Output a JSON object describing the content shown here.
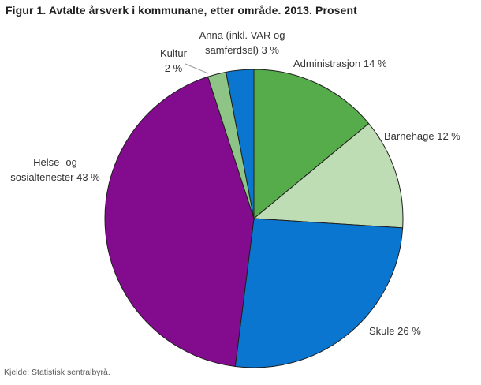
{
  "title": "Figur 1. Avtalte årsverk i kommunane, etter område. 2013. Prosent",
  "source": "Kjelde: Statistisk sentralbyrå.",
  "labels": {
    "administrasjon": "Administrasjon 14 %",
    "barnehage": "Barnehage 12 %",
    "skule": "Skule 26 %",
    "helse": {
      "line1": "Helse- og",
      "line2": "sosialtenester 43 %"
    },
    "kultur": {
      "line1": "Kultur",
      "line2": "2 %"
    },
    "anna": {
      "line1": "Anna (inkl. VAR og",
      "line2": "samferdsel) 3 %"
    }
  },
  "colors": {
    "slice_stroke": "#1f1f1f",
    "leader_line": "#999999"
  },
  "chart_data": {
    "type": "pie",
    "title": "Figur 1. Avtalte årsverk i kommunane, etter område. 2013. Prosent",
    "unit": "percent",
    "start_angle_deg": 0,
    "direction": "clockwise",
    "slices": [
      {
        "label": "Administrasjon",
        "value": 14,
        "color": "#56ab4a"
      },
      {
        "label": "Barnehage",
        "value": 12,
        "color": "#bfddb4"
      },
      {
        "label": "Skule",
        "value": 26,
        "color": "#0a76d0"
      },
      {
        "label": "Helse- og sosialtenester",
        "value": 43,
        "color": "#830b8e"
      },
      {
        "label": "Kultur",
        "value": 2,
        "color": "#8ec587"
      },
      {
        "label": "Anna (inkl. VAR og samferdsel)",
        "value": 3,
        "color": "#0a76d0"
      }
    ],
    "legend": "none",
    "source": "Kjelde: Statistisk sentralbyrå."
  }
}
